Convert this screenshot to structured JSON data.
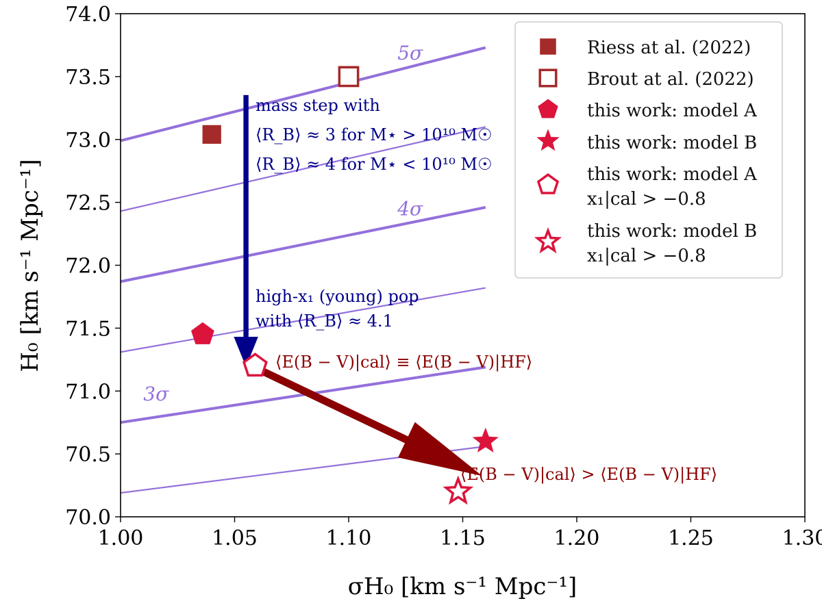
{
  "chart_data": {
    "type": "scatter",
    "xlabel": "σH₀ [km s⁻¹ Mpc⁻¹]",
    "ylabel": "H₀ [km s⁻¹ Mpc⁻¹]",
    "xlim": [
      1.0,
      1.3
    ],
    "ylim": [
      70.0,
      74.0
    ],
    "xticks": [
      "1.00",
      "1.05",
      "1.10",
      "1.15",
      "1.20",
      "1.25",
      "1.30"
    ],
    "yticks": [
      "70.0",
      "70.5",
      "71.0",
      "71.5",
      "72.0",
      "72.5",
      "73.0",
      "73.5",
      "74.0"
    ],
    "sigma_lines": [
      {
        "x": [
          1.0,
          1.16
        ],
        "y": [
          72.99,
          73.73
        ],
        "weight": "thick",
        "label": "5σ"
      },
      {
        "x": [
          1.0,
          1.16
        ],
        "y": [
          72.43,
          73.1
        ],
        "weight": "thin",
        "label": ""
      },
      {
        "x": [
          1.0,
          1.16
        ],
        "y": [
          71.87,
          72.46
        ],
        "weight": "thick",
        "label": "4σ"
      },
      {
        "x": [
          1.0,
          1.16
        ],
        "y": [
          71.31,
          71.82
        ],
        "weight": "thin",
        "label": ""
      },
      {
        "x": [
          1.0,
          1.16
        ],
        "y": [
          70.75,
          71.19
        ],
        "weight": "thick",
        "label": "3σ"
      },
      {
        "x": [
          1.0,
          1.16
        ],
        "y": [
          70.19,
          70.56
        ],
        "weight": "thin",
        "label": ""
      }
    ],
    "series": [
      {
        "name": "Riess at al. (2022)",
        "marker": "square",
        "filled": true,
        "x": 1.04,
        "y": 73.04,
        "color": "#a52a2a"
      },
      {
        "name": "Brout at al. (2022)",
        "marker": "square",
        "filled": false,
        "x": 1.1,
        "y": 73.5,
        "color": "#a52a2a"
      },
      {
        "name": "this work: model A",
        "marker": "pentagon",
        "filled": true,
        "x": 1.036,
        "y": 71.45,
        "color": "#dc143c"
      },
      {
        "name": "this work: model B",
        "marker": "star",
        "filled": true,
        "x": 1.16,
        "y": 70.6,
        "color": "#dc143c"
      },
      {
        "name": "this work: model A",
        "name_line2": "x₁|cal > −0.8",
        "marker": "pentagon",
        "filled": false,
        "x": 1.059,
        "y": 71.2,
        "color": "#dc143c"
      },
      {
        "name": "this work: model B",
        "name_line2": "x₁|cal > −0.8",
        "marker": "star",
        "filled": false,
        "x": 1.148,
        "y": 70.2,
        "color": "#dc143c"
      }
    ],
    "arrows": [
      {
        "from": [
          1.055,
          73.35
        ],
        "to": [
          1.055,
          71.2
        ],
        "color": "#00008b"
      },
      {
        "from": [
          1.055,
          71.22
        ],
        "to": [
          1.158,
          70.33
        ],
        "color": "#8b0000"
      }
    ],
    "annotations": {
      "mass_step": [
        "mass step with",
        "⟨R_B⟩ ≈ 3 for M⋆ > 10¹⁰ M☉",
        "⟨R_B⟩ ≈ 4 for M⋆ < 10¹⁰ M☉"
      ],
      "high_x1": [
        "high-x₁ (young) pop",
        "with ⟨R_B⟩ ≈ 4.1"
      ],
      "ebv_equal": "⟨E(B − V)|cal⟩ ≡ ⟨E(B − V)|HF⟩",
      "ebv_greater": "⟨E(B − V)|cal⟩ > ⟨E(B − V)|HF⟩"
    },
    "legend_position": "top-right",
    "colors": {
      "riess": "#a52a2a",
      "this_work": "#dc143c",
      "sigma": "#9370db",
      "blue_arrow": "#00008b",
      "red_arrow": "#8b0000"
    }
  }
}
